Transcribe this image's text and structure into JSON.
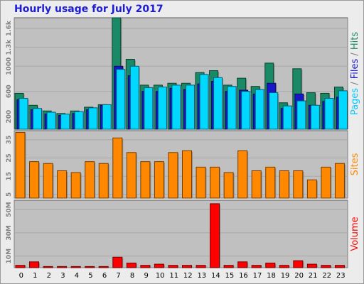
{
  "chart_data": {
    "type": "bar",
    "title": "Hourly usage for July 2017",
    "categories": [
      "0",
      "1",
      "2",
      "3",
      "4",
      "5",
      "6",
      "7",
      "8",
      "9",
      "10",
      "11",
      "12",
      "13",
      "14",
      "15",
      "16",
      "17",
      "18",
      "19",
      "20",
      "21",
      "22",
      "23"
    ],
    "panels": [
      {
        "label_parts": [
          {
            "text": "Pages",
            "color": "#00c8ff"
          },
          {
            "text": " / ",
            "color": "#808080"
          },
          {
            "text": "Files",
            "color": "#1717c9"
          },
          {
            "text": " / ",
            "color": "#808080"
          },
          {
            "text": "Hits",
            "color": "#1a8a66"
          }
        ],
        "ylim": [
          0,
          1770
        ],
        "ticks": [
          {
            "value": 200,
            "label": "200"
          },
          {
            "value": 600,
            "label": "600"
          },
          {
            "value": 1000,
            "label": "1000"
          },
          {
            "value": 1300,
            "label": "1.3k"
          },
          {
            "value": 1600,
            "label": "1.6k"
          }
        ],
        "series": [
          {
            "name": "Hits",
            "color": "#1a8a66",
            "values": [
              570,
              380,
              290,
              250,
              290,
              350,
              390,
              1770,
              1110,
              700,
              700,
              730,
              730,
              900,
              930,
              700,
              810,
              680,
              1050,
              420,
              960,
              580,
              570,
              670
            ]
          },
          {
            "name": "Files",
            "color": "#1717c9",
            "values": [
              470,
              310,
              240,
              220,
              250,
              310,
              380,
              1000,
              850,
              600,
              600,
              650,
              630,
              720,
              760,
              600,
              620,
              560,
              730,
              330,
              560,
              380,
              440,
              510
            ]
          },
          {
            "name": "Pages",
            "color": "#00d8ff",
            "values": [
              490,
              330,
              270,
              240,
              280,
              340,
              390,
              950,
              1000,
              660,
              670,
              700,
              700,
              870,
              820,
              680,
              600,
              630,
              580,
              370,
              450,
              380,
              490,
              610
            ]
          }
        ]
      },
      {
        "label_parts": [
          {
            "text": "Sites",
            "color": "#ff8800"
          }
        ],
        "ylim": [
          3,
          40
        ],
        "ticks": [
          {
            "value": 5,
            "label": "5"
          },
          {
            "value": 15,
            "label": "15"
          },
          {
            "value": 25,
            "label": "25"
          },
          {
            "value": 35,
            "label": "35"
          }
        ],
        "series": [
          {
            "name": "Sites",
            "color": "#ff8800",
            "values": [
              39,
              23,
              22,
              18,
              17,
              23,
              22,
              36,
              28,
              23,
              23,
              28,
              29,
              20,
              20,
              17,
              29,
              18,
              20,
              18,
              18,
              13,
              20,
              22
            ]
          }
        ]
      },
      {
        "label_parts": [
          {
            "text": "Volume",
            "color": "#ff0000"
          }
        ],
        "ylim": [
          0,
          58
        ],
        "ticks": [
          {
            "value": 10,
            "label": "10M"
          },
          {
            "value": 30,
            "label": "30M"
          },
          {
            "value": 50,
            "label": "50M"
          }
        ],
        "series": [
          {
            "name": "Volume",
            "color": "#ff0000",
            "values": [
              2,
              5,
              1,
              1,
              1,
              1,
              1,
              9,
              4,
              2,
              3,
              2,
              2,
              2,
              55,
              2,
              5,
              2,
              4,
              2,
              6,
              3,
              2,
              2
            ]
          }
        ]
      }
    ]
  }
}
